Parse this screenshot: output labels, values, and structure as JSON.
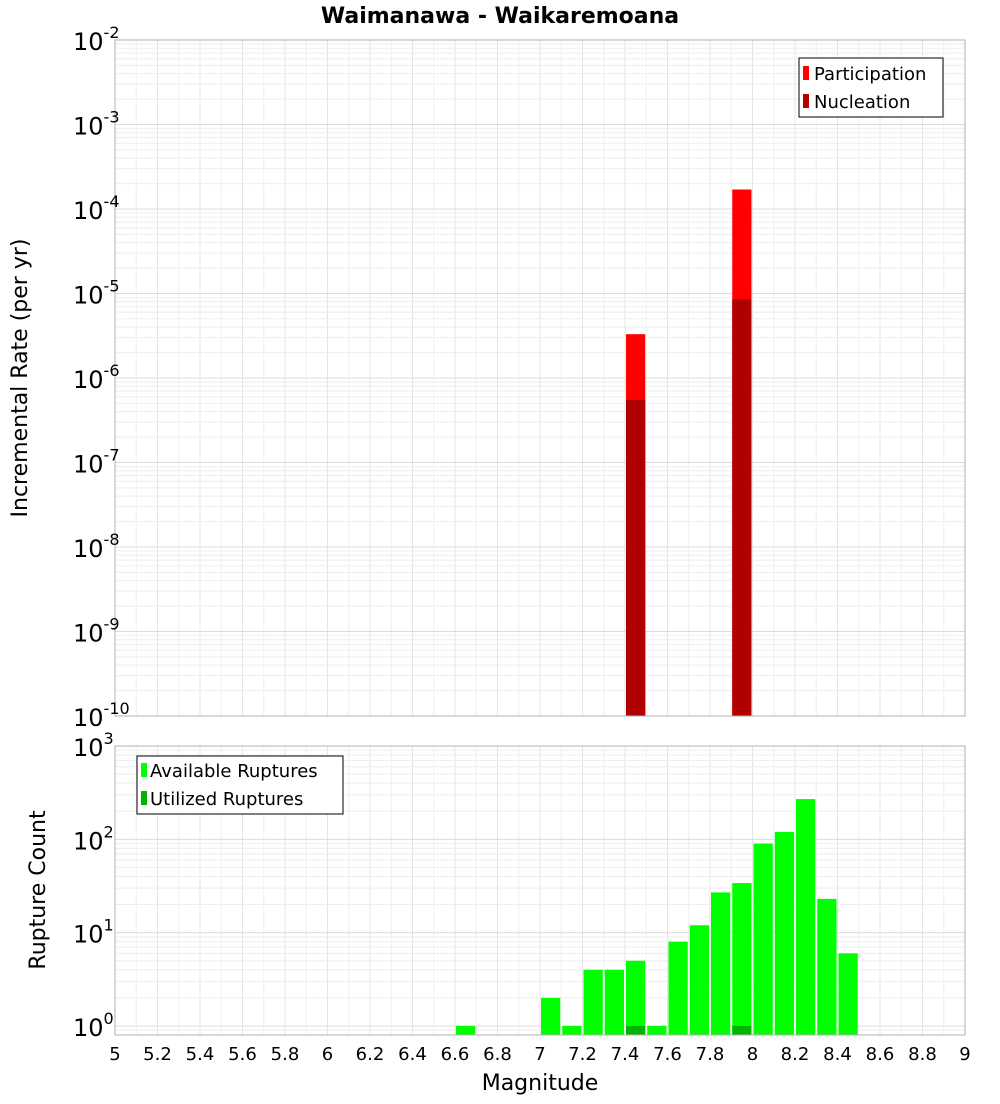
{
  "chart_data": [
    {
      "type": "bar",
      "title": "Waimanawa - Waikaremoana",
      "ylabel": "Incremental Rate (per yr)",
      "xlabel": "",
      "y_scale": "log",
      "ylim": [
        1e-10,
        0.01
      ],
      "xlim": [
        5,
        9
      ],
      "bar_width": 0.1,
      "grid": true,
      "legend_position": "top-right",
      "y_ticks": [
        {
          "base": "10",
          "exp": "-10",
          "value": 1e-10
        },
        {
          "base": "10",
          "exp": "-9",
          "value": 1e-09
        },
        {
          "base": "10",
          "exp": "-8",
          "value": 1e-08
        },
        {
          "base": "10",
          "exp": "-7",
          "value": 1e-07
        },
        {
          "base": "10",
          "exp": "-6",
          "value": 1e-06
        },
        {
          "base": "10",
          "exp": "-5",
          "value": 1e-05
        },
        {
          "base": "10",
          "exp": "-4",
          "value": 0.0001
        },
        {
          "base": "10",
          "exp": "-3",
          "value": 0.001
        },
        {
          "base": "10",
          "exp": "-2",
          "value": 0.01
        }
      ],
      "series": [
        {
          "name": "Participation",
          "color": "#ff0000",
          "points": [
            {
              "x": 7.45,
              "y": 3.3e-06
            },
            {
              "x": 7.95,
              "y": 0.00017
            }
          ]
        },
        {
          "name": "Nucleation",
          "color": "#b00000",
          "points": [
            {
              "x": 7.45,
              "y": 5.5e-07
            },
            {
              "x": 7.95,
              "y": 8.5e-06
            }
          ]
        }
      ]
    },
    {
      "type": "bar",
      "title": "",
      "ylabel": "Rupture Count",
      "xlabel": "Magnitude",
      "y_scale": "log",
      "ylim": [
        0.8,
        1000
      ],
      "xlim": [
        5,
        9
      ],
      "bar_width": 0.1,
      "grid": true,
      "legend_position": "top-left",
      "x_ticks": [
        "5",
        "5.2",
        "5.4",
        "5.6",
        "5.8",
        "6",
        "6.2",
        "6.4",
        "6.6",
        "6.8",
        "7",
        "7.2",
        "7.4",
        "7.6",
        "7.8",
        "8",
        "8.2",
        "8.4",
        "8.6",
        "8.8",
        "9"
      ],
      "y_ticks": [
        {
          "base": "10",
          "exp": "0",
          "value": 1
        },
        {
          "base": "10",
          "exp": "1",
          "value": 10
        },
        {
          "base": "10",
          "exp": "2",
          "value": 100
        },
        {
          "base": "10",
          "exp": "3",
          "value": 1000
        }
      ],
      "series": [
        {
          "name": "Available Ruptures",
          "color": "#00ff00",
          "points": [
            {
              "x": 6.65,
              "y": 1
            },
            {
              "x": 7.05,
              "y": 2
            },
            {
              "x": 7.15,
              "y": 1
            },
            {
              "x": 7.25,
              "y": 4
            },
            {
              "x": 7.35,
              "y": 4
            },
            {
              "x": 7.45,
              "y": 5
            },
            {
              "x": 7.55,
              "y": 1
            },
            {
              "x": 7.65,
              "y": 8
            },
            {
              "x": 7.75,
              "y": 12
            },
            {
              "x": 7.85,
              "y": 27
            },
            {
              "x": 7.95,
              "y": 34
            },
            {
              "x": 8.05,
              "y": 90
            },
            {
              "x": 8.15,
              "y": 120
            },
            {
              "x": 8.25,
              "y": 270
            },
            {
              "x": 8.35,
              "y": 23
            },
            {
              "x": 8.45,
              "y": 6
            }
          ]
        },
        {
          "name": "Utilized Ruptures",
          "color": "#00b400",
          "points": [
            {
              "x": 7.45,
              "y": 1
            },
            {
              "x": 7.95,
              "y": 1
            }
          ]
        }
      ]
    }
  ]
}
